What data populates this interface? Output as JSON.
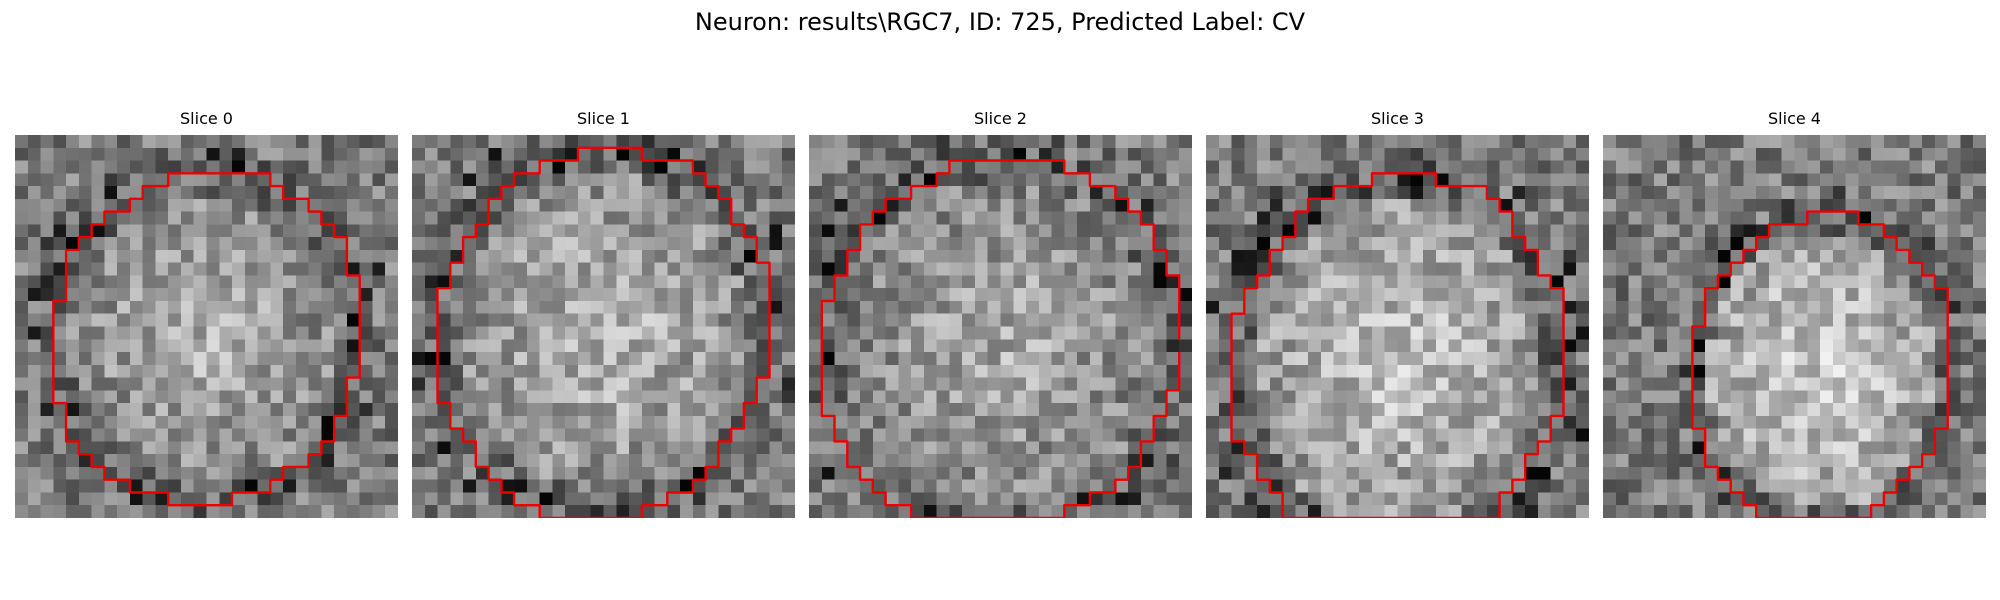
{
  "figure": {
    "title": "Neuron: results\\RGC7, ID: 725, Predicted Label: CV"
  },
  "panels": [
    {
      "title": "Slice 0",
      "icon": "microscopy-image",
      "grid": 30
    },
    {
      "title": "Slice 1",
      "icon": "microscopy-image",
      "grid": 30
    },
    {
      "title": "Slice 2",
      "icon": "microscopy-image",
      "grid": 30
    },
    {
      "title": "Slice 3",
      "icon": "microscopy-image",
      "grid": 30
    },
    {
      "title": "Slice 4",
      "icon": "microscopy-image",
      "grid": 30
    }
  ],
  "colors": {
    "contour": "#ee0000",
    "background": "#ffffff"
  }
}
